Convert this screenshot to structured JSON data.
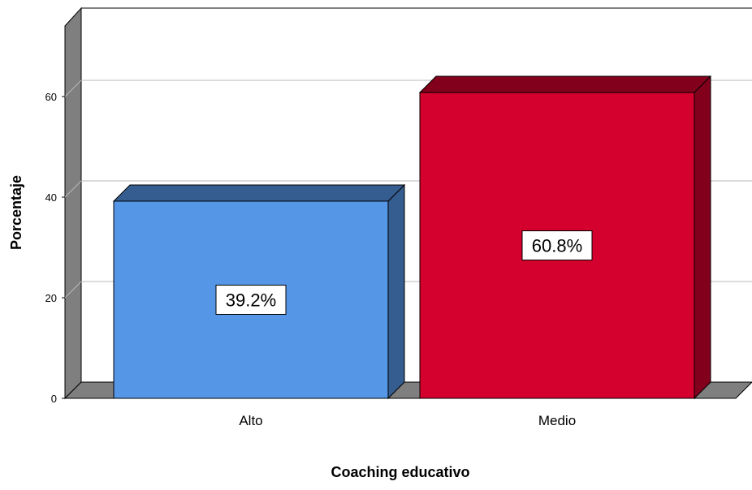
{
  "chart_data": {
    "type": "bar",
    "xlabel": "Coaching educativo",
    "ylabel": "Porcentaje",
    "categories": [
      "Alto",
      "Medio"
    ],
    "values": [
      39.2,
      60.8
    ],
    "data_labels": [
      "39.2%",
      "60.8%"
    ],
    "ylim": [
      0,
      75
    ],
    "yticks": [
      0,
      20,
      40,
      60
    ],
    "grid": true,
    "style": "3d",
    "colors": {
      "Alto": "#5596E6",
      "Medio": "#D4002D"
    }
  }
}
